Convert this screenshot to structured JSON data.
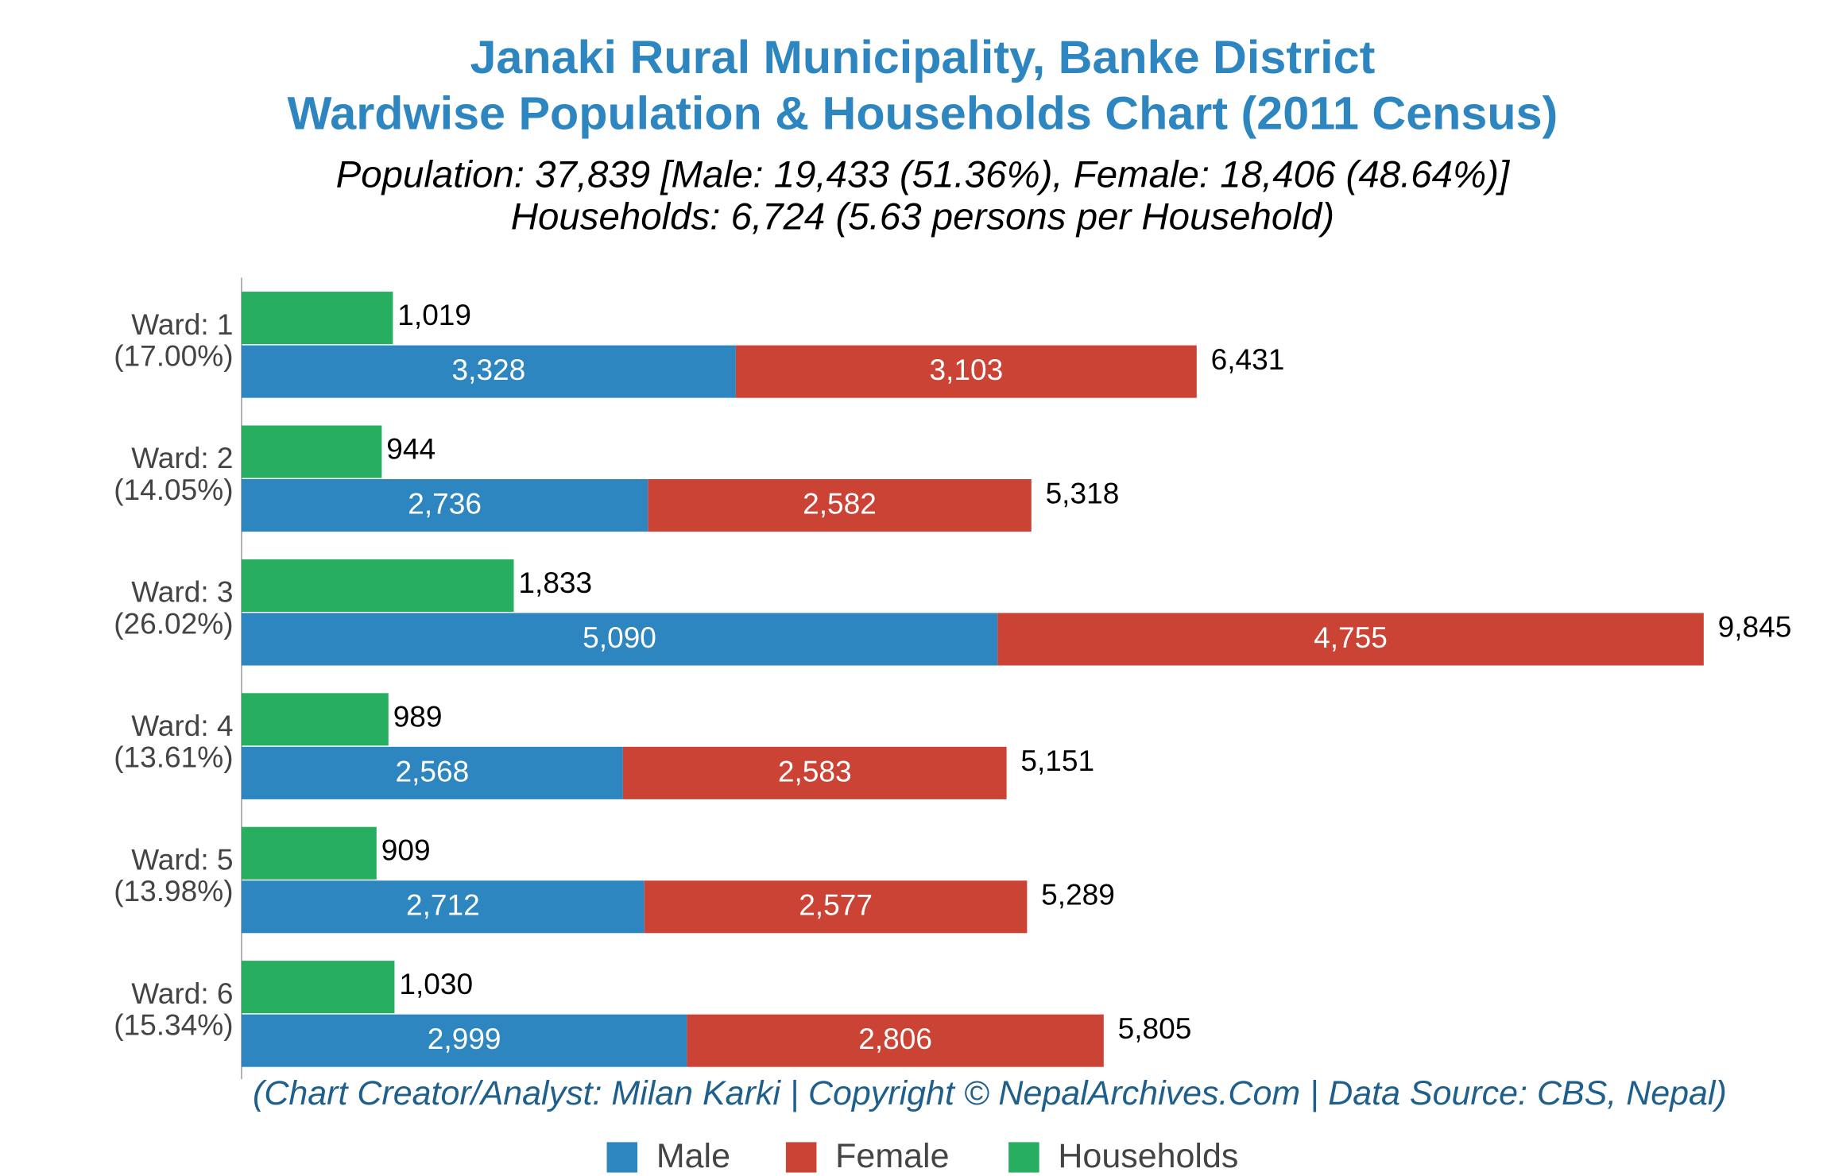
{
  "chart_data": {
    "type": "bar",
    "title": "Janaki Rural Municipality, Banke District",
    "title2": "Wardwise Population & Households Chart (2011 Census)",
    "subtitle": "Population: 37,839 [Male: 19,433 (51.36%), Female: 18,406 (48.64%)]",
    "subtitle2": "Households: 6,724 (5.63 persons per Household)",
    "footer": "(Chart Creator/Analyst: Milan Karki | Copyright © NepalArchives.Com | Data Source: CBS, Nepal)",
    "categories": [
      "Ward: 1",
      "Ward: 2",
      "Ward: 3",
      "Ward: 4",
      "Ward: 5",
      "Ward: 6"
    ],
    "category_shares": [
      "(17.00%)",
      "(14.05%)",
      "(26.02%)",
      "(13.61%)",
      "(13.98%)",
      "(15.34%)"
    ],
    "series": [
      {
        "name": "Male",
        "color": "#2e86c1",
        "values": [
          3328,
          2736,
          5090,
          2568,
          2712,
          2999
        ],
        "value_labels": [
          "3,328",
          "2,736",
          "5,090",
          "2,568",
          "2,712",
          "2,999"
        ]
      },
      {
        "name": "Female",
        "color": "#cb4335",
        "values": [
          3103,
          2582,
          4755,
          2583,
          2577,
          2806
        ],
        "value_labels": [
          "3,103",
          "2,582",
          "4,755",
          "2,583",
          "2,577",
          "2,806"
        ]
      },
      {
        "name": "Households",
        "color": "#27ae60",
        "values": [
          1019,
          944,
          1833,
          989,
          909,
          1030
        ],
        "value_labels": [
          "1,019",
          "944",
          "1,833",
          "989",
          "909",
          "1,030"
        ]
      }
    ],
    "totals": {
      "values": [
        6431,
        5318,
        9845,
        5151,
        5289,
        5805
      ],
      "value_labels": [
        "6,431",
        "5,318",
        "9,845",
        "5,151",
        "5,289",
        "5,805"
      ]
    },
    "xlim": [
      0,
      10000
    ],
    "orientation": "horizontal"
  }
}
